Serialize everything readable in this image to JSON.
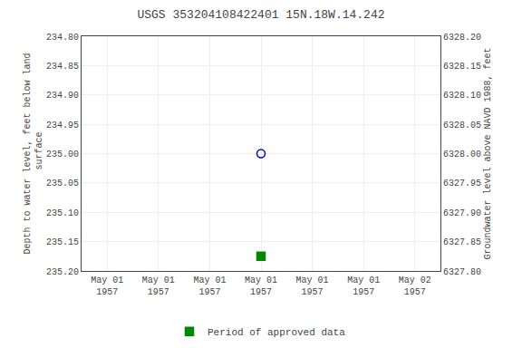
{
  "chart_data": {
    "type": "scatter",
    "title": "USGS 353204108422401 15N.18W.14.242",
    "ylabel": "Depth to water level, feet below land\n surface",
    "y2label": "Groundwater level above NAVD 1988, feet",
    "categories": [
      "May 01\n1957",
      "May 01\n1957",
      "May 01\n1957",
      "May 01\n1957",
      "May 01\n1957",
      "May 01\n1957",
      "May 02\n1957"
    ],
    "series": [
      {
        "color": "#0000cc",
        "marker": "circle-open",
        "values": [
          null,
          null,
          null,
          235.0,
          null,
          null,
          null
        ]
      },
      {
        "name": "Period of approved data",
        "color": "#008800",
        "marker": "square",
        "values": [
          null,
          null,
          null,
          235.175,
          null,
          null,
          null
        ]
      }
    ],
    "ylim": [
      235.2,
      234.8
    ],
    "yticks": [
      {
        "value": 234.8,
        "label": "234.80"
      },
      {
        "value": 234.85,
        "label": "234.85"
      },
      {
        "value": 234.9,
        "label": "234.90"
      },
      {
        "value": 234.95,
        "label": "234.95"
      },
      {
        "value": 235.0,
        "label": "235.00"
      },
      {
        "value": 235.05,
        "label": "235.05"
      },
      {
        "value": 235.1,
        "label": "235.10"
      },
      {
        "value": 235.15,
        "label": "235.15"
      },
      {
        "value": 235.2,
        "label": "235.20"
      }
    ],
    "y2lim": [
      6327.8,
      6328.2
    ],
    "y2ticks": [
      {
        "value": 6327.8,
        "label": "6327.80"
      },
      {
        "value": 6327.85,
        "label": "6327.85"
      },
      {
        "value": 6327.9,
        "label": "6327.90"
      },
      {
        "value": 6327.95,
        "label": "6327.95"
      },
      {
        "value": 6328.0,
        "label": "6328.00"
      },
      {
        "value": 6328.05,
        "label": "6328.05"
      },
      {
        "value": 6328.1,
        "label": "6328.10"
      },
      {
        "value": 6328.15,
        "label": "6328.15"
      },
      {
        "value": 6328.2,
        "label": "6328.20"
      }
    ],
    "grid": true,
    "legend": "bottom"
  }
}
